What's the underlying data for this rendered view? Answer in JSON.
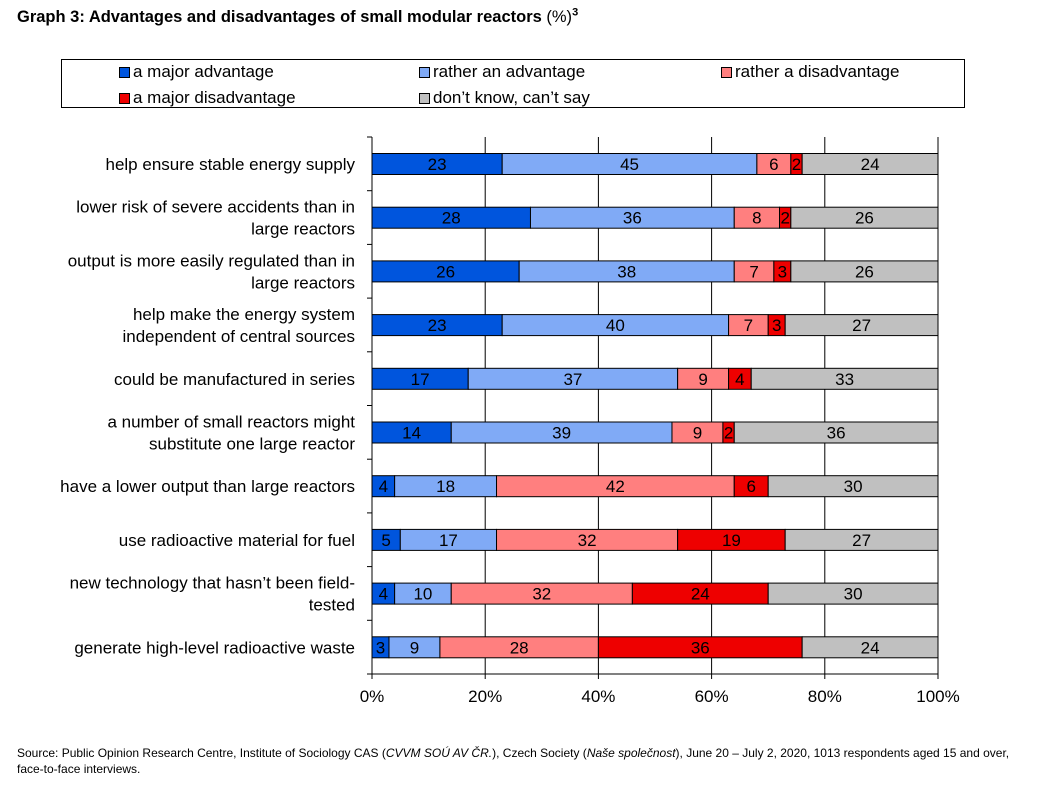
{
  "title": {
    "main": "Graph 3: Advantages and disadvantages of small modular reactors",
    "unit": "(%)",
    "footnote": "3"
  },
  "legend": {
    "items": [
      {
        "label": "a major advantage",
        "color": "#0055dd"
      },
      {
        "label": "rather an advantage",
        "color": "#80aaf6"
      },
      {
        "label": "rather a disadvantage",
        "color": "#ff7f7f"
      },
      {
        "label": "a major disadvantage",
        "color": "#ee0000"
      },
      {
        "label": "don’t know, can’t say",
        "color": "#c0c0c0"
      }
    ]
  },
  "chart_data": {
    "type": "bar",
    "orientation": "horizontal",
    "stacked": true,
    "categories": [
      [
        "help ensure stable energy supply"
      ],
      [
        "lower risk of severe accidents than in",
        "large reactors"
      ],
      [
        "output is more easily regulated than in",
        "large reactors"
      ],
      [
        "help make the energy system",
        "independent of central sources"
      ],
      [
        "could be manufactured in series"
      ],
      [
        "a number of small reactors might",
        "substitute one large reactor"
      ],
      [
        "have a lower output than large reactors"
      ],
      [
        "use radioactive material for fuel"
      ],
      [
        "new technology that hasn’t been field-",
        "tested"
      ],
      [
        "generate high-level radioactive waste"
      ]
    ],
    "series": [
      {
        "name": "a major advantage",
        "color": "#0055dd",
        "values": [
          23,
          28,
          26,
          23,
          17,
          14,
          4,
          5,
          4,
          3
        ]
      },
      {
        "name": "rather an advantage",
        "color": "#80aaf6",
        "values": [
          45,
          36,
          38,
          40,
          37,
          39,
          18,
          17,
          10,
          9
        ]
      },
      {
        "name": "rather a disadvantage",
        "color": "#ff7f7f",
        "values": [
          6,
          8,
          7,
          7,
          9,
          9,
          42,
          32,
          32,
          28
        ]
      },
      {
        "name": "a major disadvantage",
        "color": "#ee0000",
        "values": [
          2,
          2,
          3,
          3,
          4,
          2,
          6,
          19,
          24,
          36
        ]
      },
      {
        "name": "don’t know, can’t say",
        "color": "#c0c0c0",
        "values": [
          24,
          26,
          26,
          27,
          33,
          36,
          30,
          27,
          30,
          24
        ]
      }
    ],
    "xlim": [
      0,
      100
    ],
    "xticks": [
      "0%",
      "20%",
      "40%",
      "60%",
      "80%",
      "100%"
    ],
    "grid": "vertical",
    "legend_position": "top"
  },
  "source": {
    "prefix": "Source: Public Opinion Research Centre, Institute of Sociology CAS (",
    "org_abbr": "CVVM SOÚ AV ČR.",
    "middle": "), Czech Society (",
    "survey_name": "Naše společnost",
    "suffix": "), June 20 – July 2, 2020, 1013 respondents aged 15 and over, face-to-face interviews."
  }
}
